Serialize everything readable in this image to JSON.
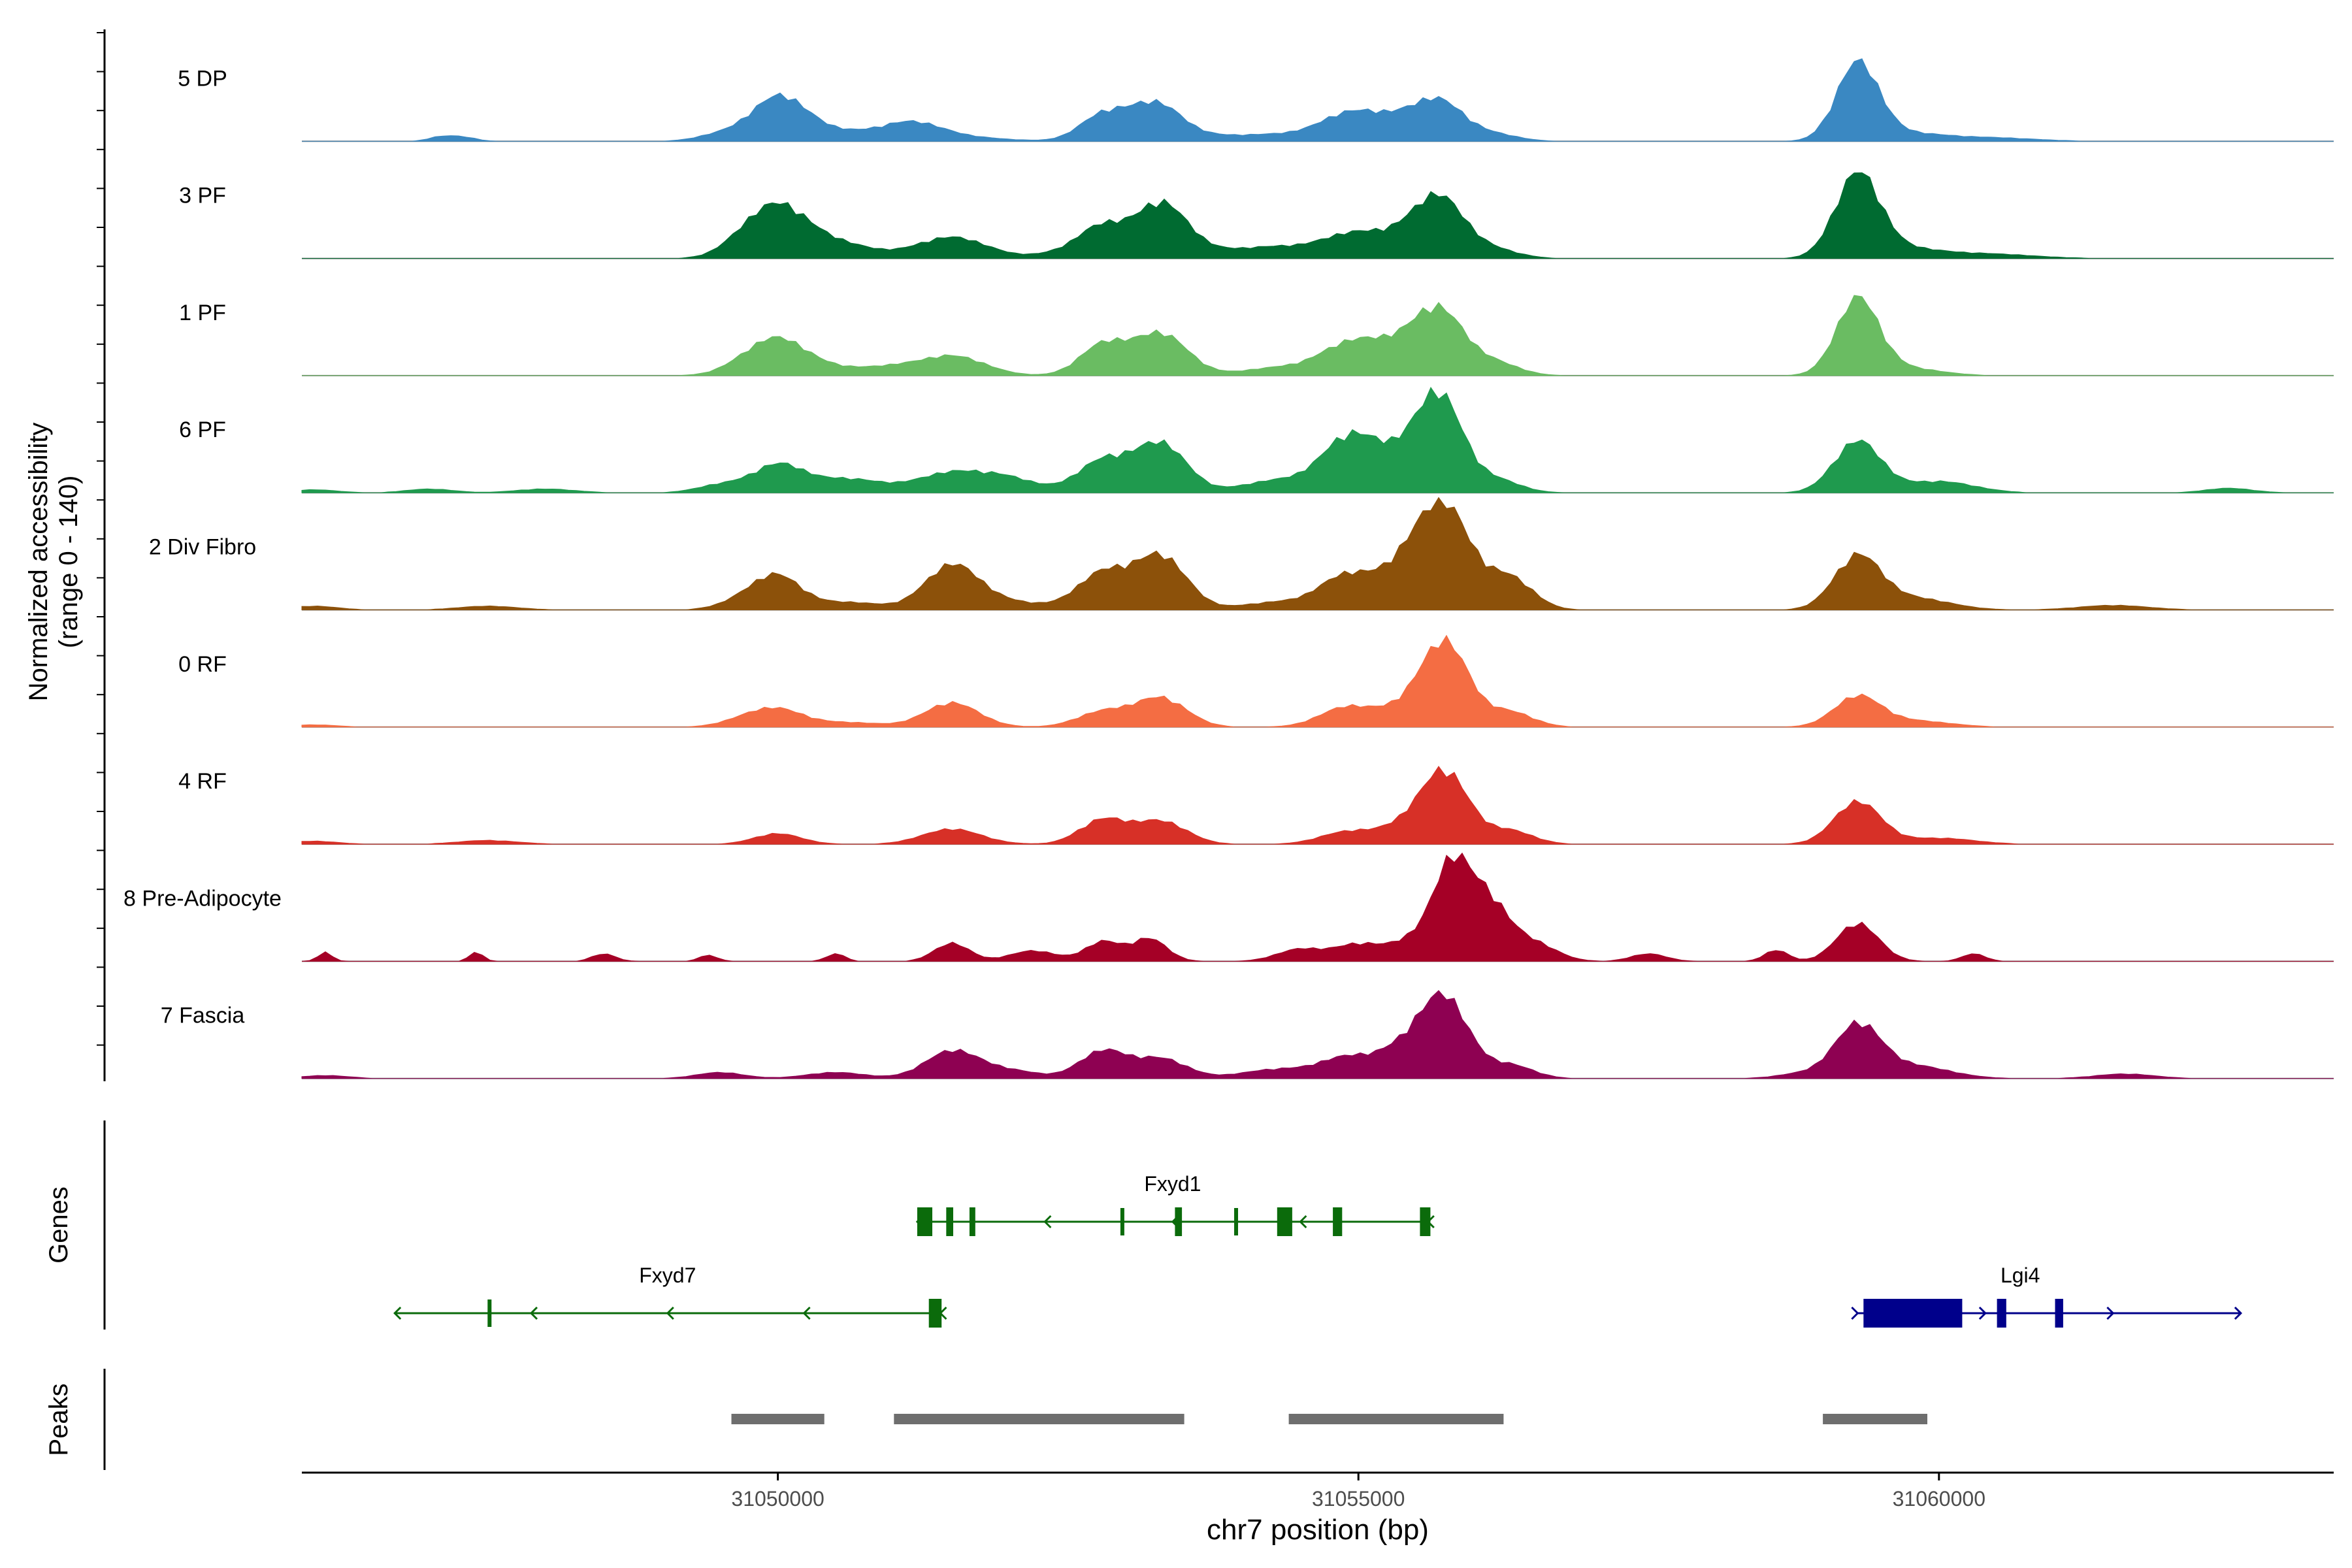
{
  "chart_data": {
    "type": "area",
    "title": "",
    "xlabel": "chr7 position (bp)",
    "ylabel_line1": "Normalized accessibility",
    "ylabel_line2": "(range 0 - 140)",
    "yrange": [
      0,
      140
    ],
    "xrange": [
      31045900,
      31063400
    ],
    "xticks": [
      31050000,
      31055000,
      31060000
    ],
    "xtick_labels": [
      "31050000",
      "31055000",
      "31060000"
    ],
    "panel_labels": {
      "genes": "Genes",
      "peaks": "Peaks"
    },
    "tracks": [
      {
        "name": "5 DP",
        "color": "#3a88c2",
        "peaks": [
          [
            31047100,
            6,
            110
          ],
          [
            31047300,
            5,
            110
          ],
          [
            31049500,
            8,
            200
          ],
          [
            31050000,
            52,
            230
          ],
          [
            31050400,
            14,
            400
          ],
          [
            31051150,
            20,
            250
          ],
          [
            31051500,
            6,
            400
          ],
          [
            31052800,
            34,
            200
          ],
          [
            31053250,
            48,
            220
          ],
          [
            31053700,
            6,
            300
          ],
          [
            31054300,
            8,
            300
          ],
          [
            31054900,
            32,
            250
          ],
          [
            31055300,
            22,
            250
          ],
          [
            31055700,
            50,
            220
          ],
          [
            31056200,
            8,
            200
          ],
          [
            31059300,
            102,
            180
          ],
          [
            31059700,
            10,
            300
          ],
          [
            31060400,
            5,
            400
          ]
        ]
      },
      {
        "name": "3 PF",
        "color": "#006b31",
        "peaks": [
          [
            31049700,
            18,
            200
          ],
          [
            31050000,
            55,
            230
          ],
          [
            31050400,
            24,
            350
          ],
          [
            31051500,
            28,
            300
          ],
          [
            31052500,
            8,
            250
          ],
          [
            31052800,
            38,
            200
          ],
          [
            31053300,
            70,
            220
          ],
          [
            31053700,
            8,
            300
          ],
          [
            31054300,
            14,
            300
          ],
          [
            31054900,
            26,
            250
          ],
          [
            31055300,
            22,
            250
          ],
          [
            31055700,
            78,
            220
          ],
          [
            31056200,
            10,
            200
          ],
          [
            31059300,
            110,
            190
          ],
          [
            31059700,
            12,
            300
          ],
          [
            31060400,
            6,
            400
          ]
        ]
      },
      {
        "name": "1 PF",
        "color": "#6abc62",
        "peaks": [
          [
            31049700,
            10,
            200
          ],
          [
            31050000,
            40,
            230
          ],
          [
            31050400,
            12,
            400
          ],
          [
            31051000,
            6,
            200
          ],
          [
            31051500,
            26,
            280
          ],
          [
            31052800,
            40,
            200
          ],
          [
            31053300,
            55,
            230
          ],
          [
            31054300,
            10,
            300
          ],
          [
            31054900,
            36,
            250
          ],
          [
            31055300,
            30,
            250
          ],
          [
            31055700,
            82,
            220
          ],
          [
            31056200,
            15,
            200
          ],
          [
            31059300,
            100,
            180
          ],
          [
            31059700,
            10,
            300
          ]
        ]
      },
      {
        "name": "6 PF",
        "color": "#1f9a4e",
        "peaks": [
          [
            31046000,
            4,
            200
          ],
          [
            31047000,
            5,
            200
          ],
          [
            31048000,
            5,
            250
          ],
          [
            31049500,
            10,
            200
          ],
          [
            31050000,
            36,
            220
          ],
          [
            31050600,
            18,
            300
          ],
          [
            31051500,
            26,
            300
          ],
          [
            31052000,
            16,
            250
          ],
          [
            31052800,
            42,
            220
          ],
          [
            31053300,
            64,
            220
          ],
          [
            31054300,
            16,
            300
          ],
          [
            31054900,
            64,
            230
          ],
          [
            31055300,
            40,
            250
          ],
          [
            31055700,
            122,
            200
          ],
          [
            31056200,
            16,
            200
          ],
          [
            31059300,
            68,
            200
          ],
          [
            31060000,
            15,
            300
          ],
          [
            31062500,
            6,
            200
          ]
        ]
      },
      {
        "name": "2 Div Fibro",
        "color": "#8c510a",
        "peaks": [
          [
            31046000,
            5,
            200
          ],
          [
            31047500,
            5,
            250
          ],
          [
            31049700,
            12,
            200
          ],
          [
            31050000,
            42,
            200
          ],
          [
            31050600,
            10,
            300
          ],
          [
            31051500,
            58,
            230
          ],
          [
            31052000,
            10,
            300
          ],
          [
            31052800,
            48,
            220
          ],
          [
            31053300,
            70,
            220
          ],
          [
            31054300,
            10,
            300
          ],
          [
            31054900,
            44,
            230
          ],
          [
            31055400,
            50,
            220
          ],
          [
            31055750,
            128,
            220
          ],
          [
            31056300,
            42,
            200
          ],
          [
            31059300,
            70,
            200
          ],
          [
            31059800,
            15,
            300
          ],
          [
            31061500,
            6,
            300
          ]
        ]
      },
      {
        "name": "0 RF",
        "color": "#f46d43",
        "peaks": [
          [
            31046000,
            3,
            200
          ],
          [
            31049700,
            8,
            200
          ],
          [
            31050000,
            22,
            220
          ],
          [
            31050600,
            6,
            300
          ],
          [
            31051500,
            32,
            230
          ],
          [
            31052800,
            20,
            220
          ],
          [
            31053300,
            38,
            220
          ],
          [
            31054900,
            26,
            230
          ],
          [
            31055400,
            22,
            220
          ],
          [
            31055750,
            108,
            200
          ],
          [
            31056300,
            20,
            200
          ],
          [
            31059300,
            40,
            200
          ],
          [
            31059800,
            8,
            300
          ]
        ]
      },
      {
        "name": "4 RF",
        "color": "#d73027",
        "peaks": [
          [
            31046000,
            4,
            200
          ],
          [
            31047500,
            5,
            250
          ],
          [
            31050000,
            14,
            200
          ],
          [
            31051500,
            20,
            250
          ],
          [
            31052800,
            32,
            200
          ],
          [
            31053300,
            30,
            220
          ],
          [
            31054900,
            16,
            230
          ],
          [
            31055400,
            22,
            220
          ],
          [
            31055750,
            92,
            200
          ],
          [
            31056300,
            18,
            200
          ],
          [
            31059300,
            56,
            200
          ],
          [
            31060000,
            8,
            300
          ]
        ]
      },
      {
        "name": "8 Pre-Adipocyte",
        "color": "#a50026",
        "peaks": [
          [
            31046100,
            12,
            60
          ],
          [
            31047400,
            12,
            60
          ],
          [
            31048500,
            10,
            100
          ],
          [
            31049400,
            8,
            80
          ],
          [
            31050500,
            10,
            80
          ],
          [
            31051500,
            24,
            150
          ],
          [
            31052200,
            14,
            200
          ],
          [
            31052800,
            26,
            150
          ],
          [
            31053200,
            30,
            150
          ],
          [
            31054500,
            16,
            200
          ],
          [
            31055000,
            22,
            200
          ],
          [
            31055500,
            30,
            200
          ],
          [
            31055800,
            110,
            150
          ],
          [
            31056100,
            80,
            180
          ],
          [
            31056500,
            24,
            200
          ],
          [
            31057500,
            10,
            150
          ],
          [
            31058600,
            15,
            100
          ],
          [
            31059300,
            50,
            180
          ],
          [
            31060300,
            10,
            100
          ]
        ]
      },
      {
        "name": "7 Fascia",
        "color": "#8e0152",
        "peaks": [
          [
            31046100,
            4,
            200
          ],
          [
            31049500,
            8,
            200
          ],
          [
            31050500,
            8,
            250
          ],
          [
            31051500,
            36,
            230
          ],
          [
            31052000,
            10,
            250
          ],
          [
            31052800,
            36,
            200
          ],
          [
            31053300,
            26,
            220
          ],
          [
            31054300,
            12,
            300
          ],
          [
            31054900,
            26,
            230
          ],
          [
            31055400,
            38,
            220
          ],
          [
            31055750,
            100,
            200
          ],
          [
            31056300,
            18,
            200
          ],
          [
            31058800,
            6,
            200
          ],
          [
            31059300,
            70,
            200
          ],
          [
            31059800,
            16,
            300
          ],
          [
            31061600,
            6,
            250
          ]
        ]
      }
    ],
    "genes": [
      {
        "name": "Fxyd1",
        "strand": "-",
        "color": "#0b6b0b",
        "start": 31051200,
        "end": 31055600,
        "exons": [
          [
            31051200,
            31051330
          ],
          [
            31051450,
            31051510
          ],
          [
            31051650,
            31051700
          ],
          [
            31052950,
            31052980
          ],
          [
            31053420,
            31053480
          ],
          [
            31053930,
            31053960
          ],
          [
            31054300,
            31054430
          ],
          [
            31054780,
            31054860
          ],
          [
            31055530,
            31055620
          ]
        ]
      },
      {
        "name": "Fxyd7",
        "strand": "-",
        "color": "#0b6b0b",
        "start": 31046700,
        "end": 31051400,
        "exons": [
          [
            31047500,
            31047520
          ],
          [
            31051300,
            31051410
          ]
        ]
      },
      {
        "name": "Lgi4",
        "strand": "+",
        "color": "#00008b",
        "start": 31059300,
        "end": 31062600,
        "exons": [
          [
            31059350,
            31060200
          ],
          [
            31060500,
            31060580
          ],
          [
            31061000,
            31061070
          ]
        ]
      }
    ],
    "peaks_track": [
      [
        31049600,
        31050400
      ],
      [
        31051000,
        31053500
      ],
      [
        31054400,
        31056250
      ],
      [
        31059000,
        31059900
      ]
    ]
  }
}
